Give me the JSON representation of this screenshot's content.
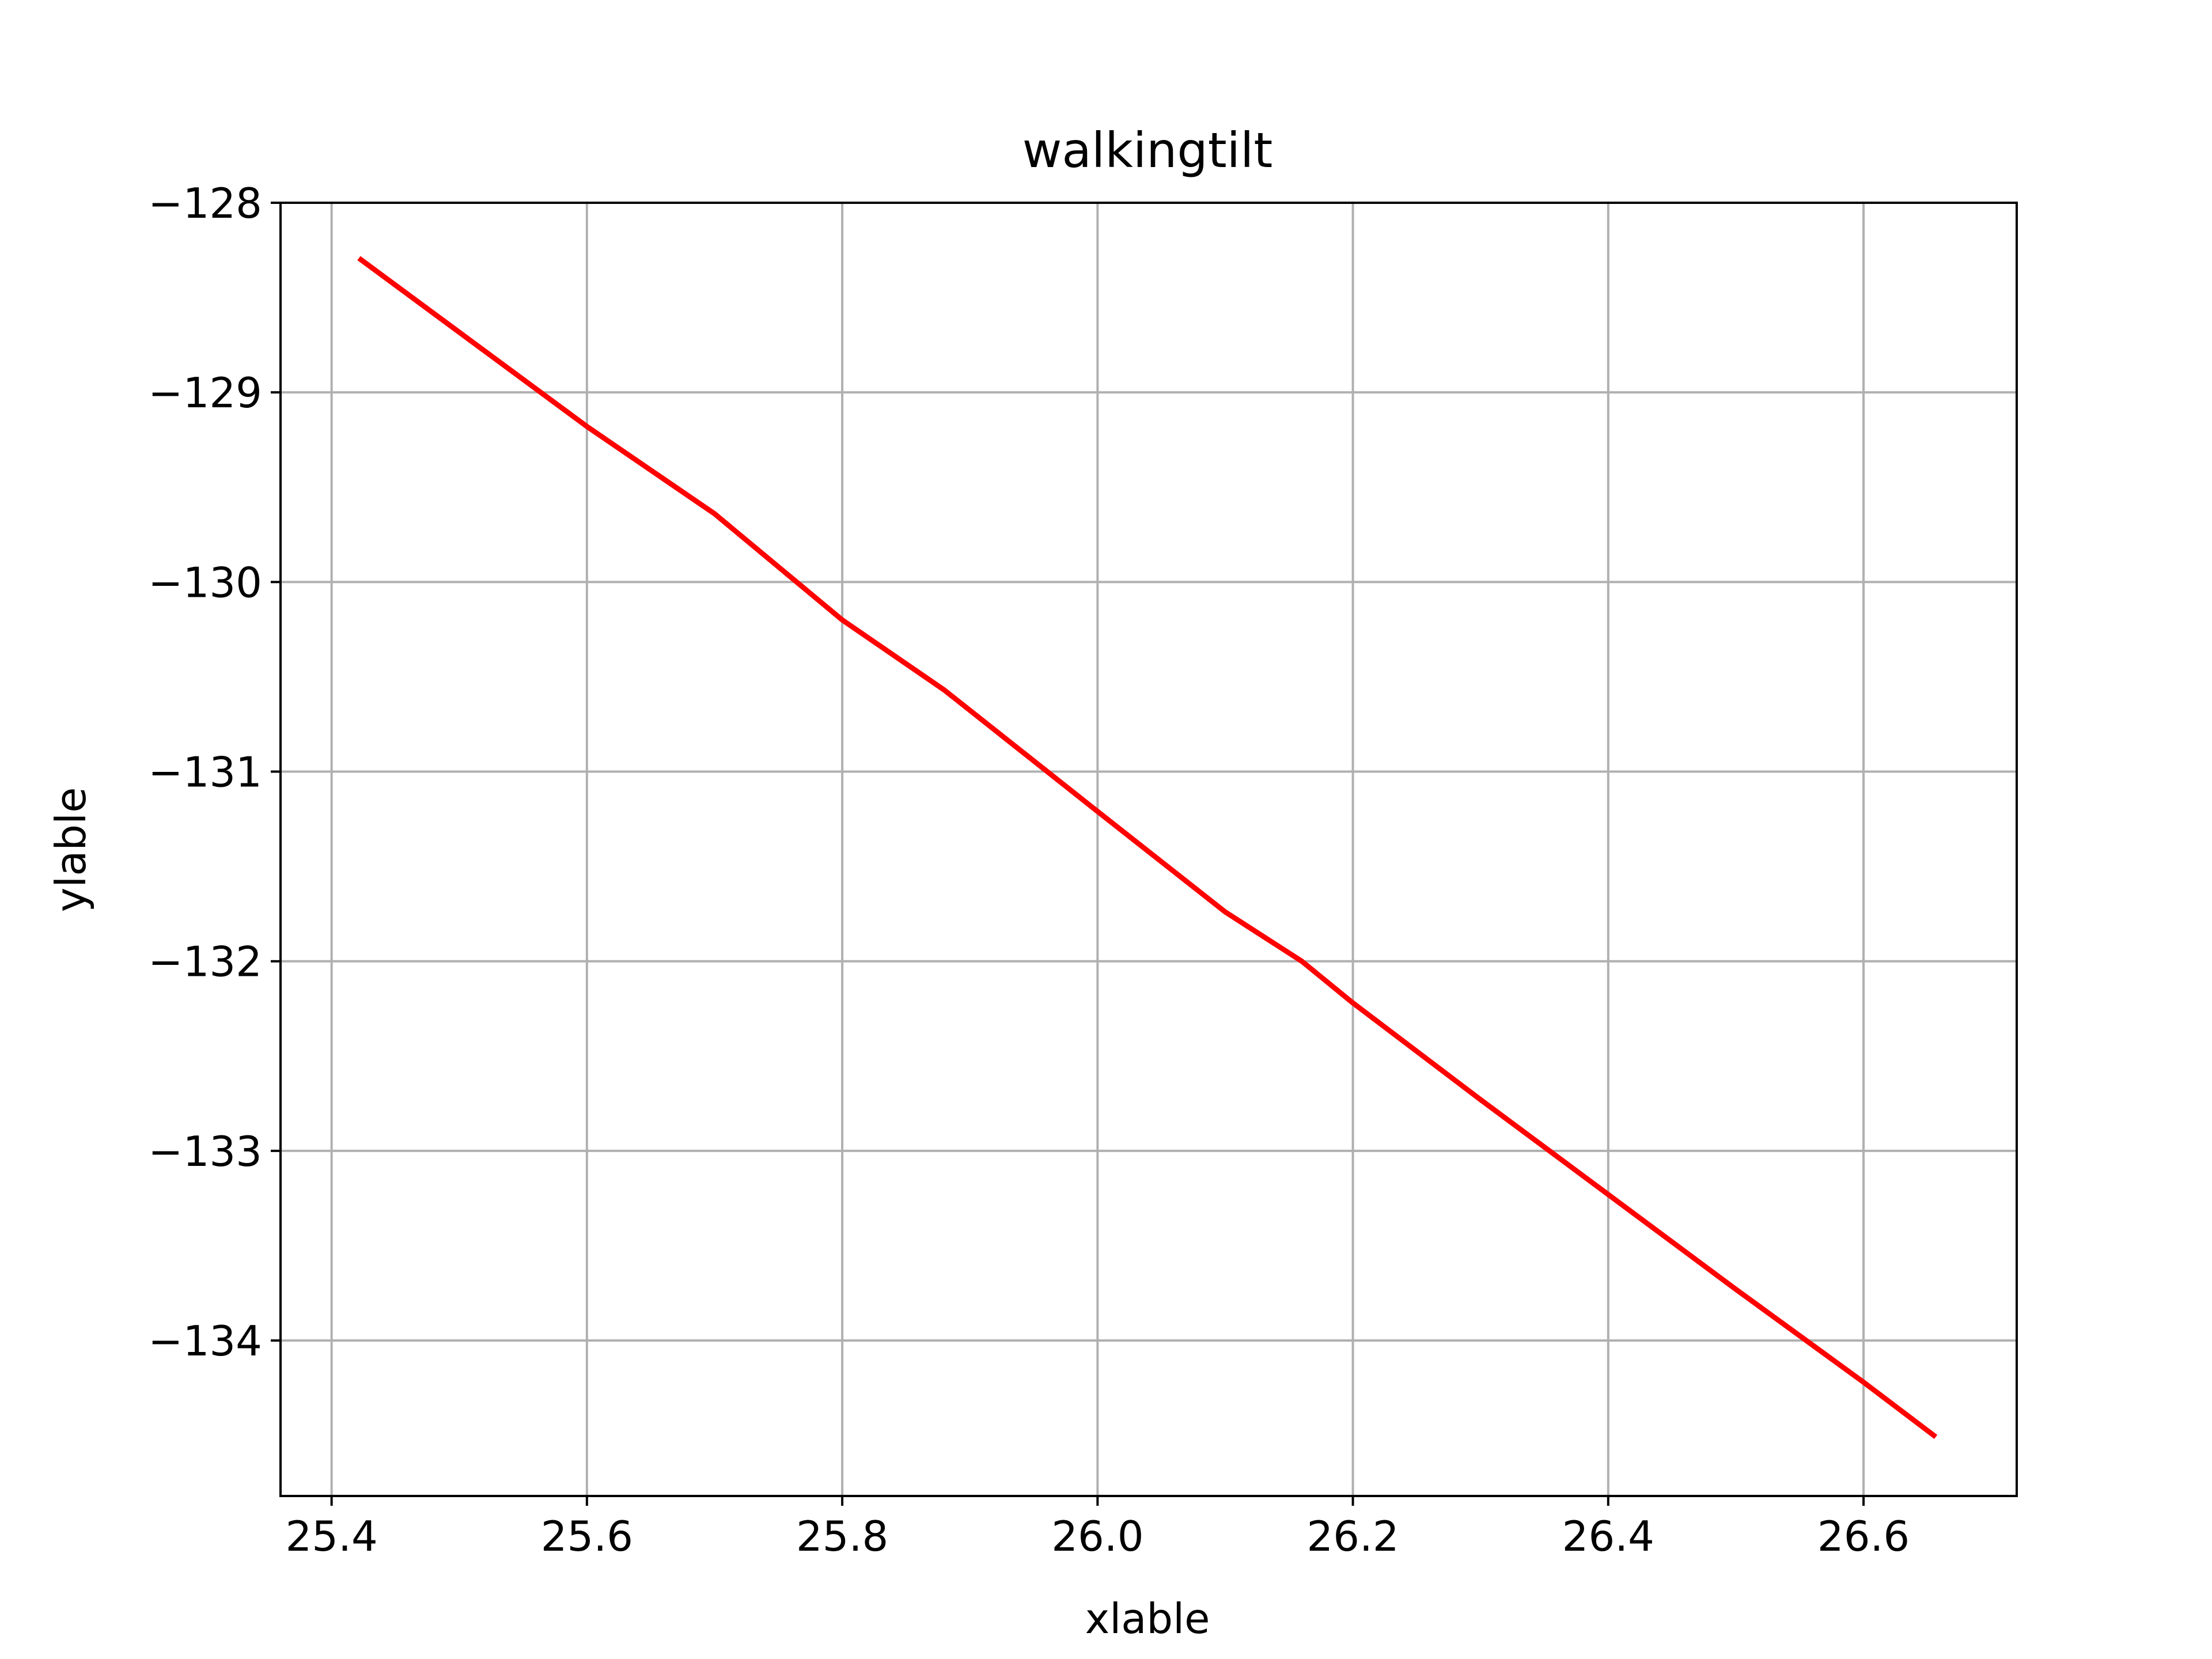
{
  "chart_data": {
    "type": "line",
    "title": "walkingtilt",
    "xlabel": "xlable",
    "ylabel": "ylable",
    "xlim": [
      25.36,
      26.72
    ],
    "ylim": [
      -134.82,
      -128.0
    ],
    "xticks": [
      25.4,
      25.6,
      25.8,
      26.0,
      26.2,
      26.4,
      26.6
    ],
    "xtick_labels": [
      "25.4",
      "25.6",
      "25.8",
      "26.0",
      "26.2",
      "26.4",
      "26.6"
    ],
    "yticks": [
      -128,
      -129,
      -130,
      -131,
      -132,
      -133,
      -134
    ],
    "ytick_labels": [
      "−128",
      "−129",
      "−130",
      "−131",
      "−132",
      "−133",
      "−134"
    ],
    "grid": true,
    "series": [
      {
        "color": "#ff0000",
        "x": [
          25.423,
          25.6,
          25.7,
          25.8,
          25.88,
          26.0,
          26.1,
          26.16,
          26.2,
          26.3,
          26.4,
          26.5,
          26.6,
          26.655
        ],
        "y": [
          -128.3,
          -129.18,
          -129.64,
          -130.2,
          -130.57,
          -131.21,
          -131.74,
          -132.0,
          -132.22,
          -132.73,
          -133.23,
          -133.73,
          -134.22,
          -134.5
        ]
      }
    ]
  }
}
